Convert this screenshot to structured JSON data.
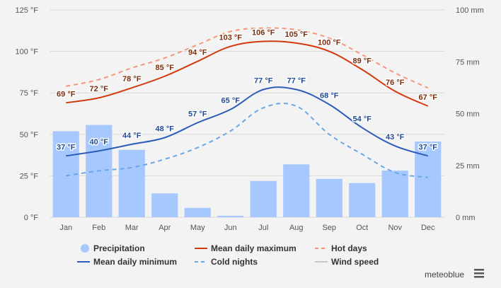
{
  "chart_data": {
    "type": "bar-line-combo",
    "categories": [
      "Jan",
      "Feb",
      "Mar",
      "Apr",
      "May",
      "Jun",
      "Jul",
      "Aug",
      "Sep",
      "Oct",
      "Nov",
      "Dec"
    ],
    "left_axis": {
      "unit": "°F",
      "min": 0,
      "max": 125,
      "ticks": [
        0,
        25,
        50,
        75,
        100,
        125
      ],
      "tick_labels": [
        "0 °F",
        "25 °F",
        "50 °F",
        "75 °F",
        "100 °F",
        "125 °F"
      ]
    },
    "right_axis": {
      "unit": "mm",
      "min": 0,
      "max": 100,
      "ticks": [
        0,
        25,
        50,
        75,
        100
      ],
      "tick_labels": [
        "0 mm",
        "25 mm",
        "50 mm",
        "75 mm",
        "100 mm"
      ]
    },
    "grid": true,
    "legend_position": "bottom",
    "series": [
      {
        "name": "Precipitation",
        "type": "bar",
        "axis": "right",
        "color": "#a6c8ff",
        "values": [
          41.5,
          44.5,
          32.5,
          11.5,
          4.5,
          0.7,
          17.5,
          25.5,
          18.5,
          16.5,
          22.5,
          36.5
        ]
      },
      {
        "name": "Mean daily maximum",
        "type": "line",
        "axis": "left",
        "color": "#d23a0e",
        "dashed": false,
        "values": [
          69,
          72,
          78,
          85,
          94,
          103,
          106,
          105,
          100,
          89,
          76,
          67
        ],
        "labels": [
          "69 °F",
          "72 °F",
          "78 °F",
          "85 °F",
          "94 °F",
          "103 °F",
          "106 °F",
          "105 °F",
          "100 °F",
          "89 °F",
          "76 °F",
          "67 °F"
        ],
        "label_color": "#7a2e0e"
      },
      {
        "name": "Hot days",
        "type": "line",
        "axis": "left",
        "color": "#f5977c",
        "dashed": true,
        "values": [
          79,
          83,
          90,
          96,
          104,
          112,
          114,
          113,
          108,
          98,
          87,
          78
        ]
      },
      {
        "name": "Mean daily minimum",
        "type": "line",
        "axis": "left",
        "color": "#2a5cb8",
        "dashed": false,
        "values": [
          37,
          40,
          44,
          48,
          57,
          65,
          77,
          77,
          68,
          54,
          43,
          37
        ],
        "labels": [
          "37 °F",
          "40 °F",
          "44 °F",
          "48 °F",
          "57 °F",
          "65 °F",
          "77 °F",
          "77 °F",
          "68 °F",
          "54 °F",
          "43 °F",
          "37 °F"
        ],
        "label_color": "#1f4a9a"
      },
      {
        "name": "Cold nights",
        "type": "line",
        "axis": "left",
        "color": "#6aa7e6",
        "dashed": true,
        "values": [
          25,
          28,
          30,
          35,
          42,
          52,
          66,
          67,
          50,
          38,
          27,
          24
        ]
      }
    ],
    "legend_extra": [
      {
        "name": "Wind speed",
        "color": "#c8c8c8",
        "disabled": true
      }
    ]
  },
  "legend": [
    {
      "label": "Precipitation",
      "kind": "dot",
      "color": "#a6c8ff"
    },
    {
      "label": "Mean daily maximum",
      "kind": "line",
      "color": "#d23a0e"
    },
    {
      "label": "Hot days",
      "kind": "dash",
      "color": "#f5977c"
    },
    {
      "label": "Mean daily minimum",
      "kind": "line",
      "color": "#2a5cb8"
    },
    {
      "label": "Cold nights",
      "kind": "dash",
      "color": "#6aa7e6"
    },
    {
      "label": "Wind speed",
      "kind": "line-disabled",
      "color": "#c8c8c8"
    }
  ],
  "brand": "meteoblue",
  "menu_icon": "hamburger-menu-icon"
}
